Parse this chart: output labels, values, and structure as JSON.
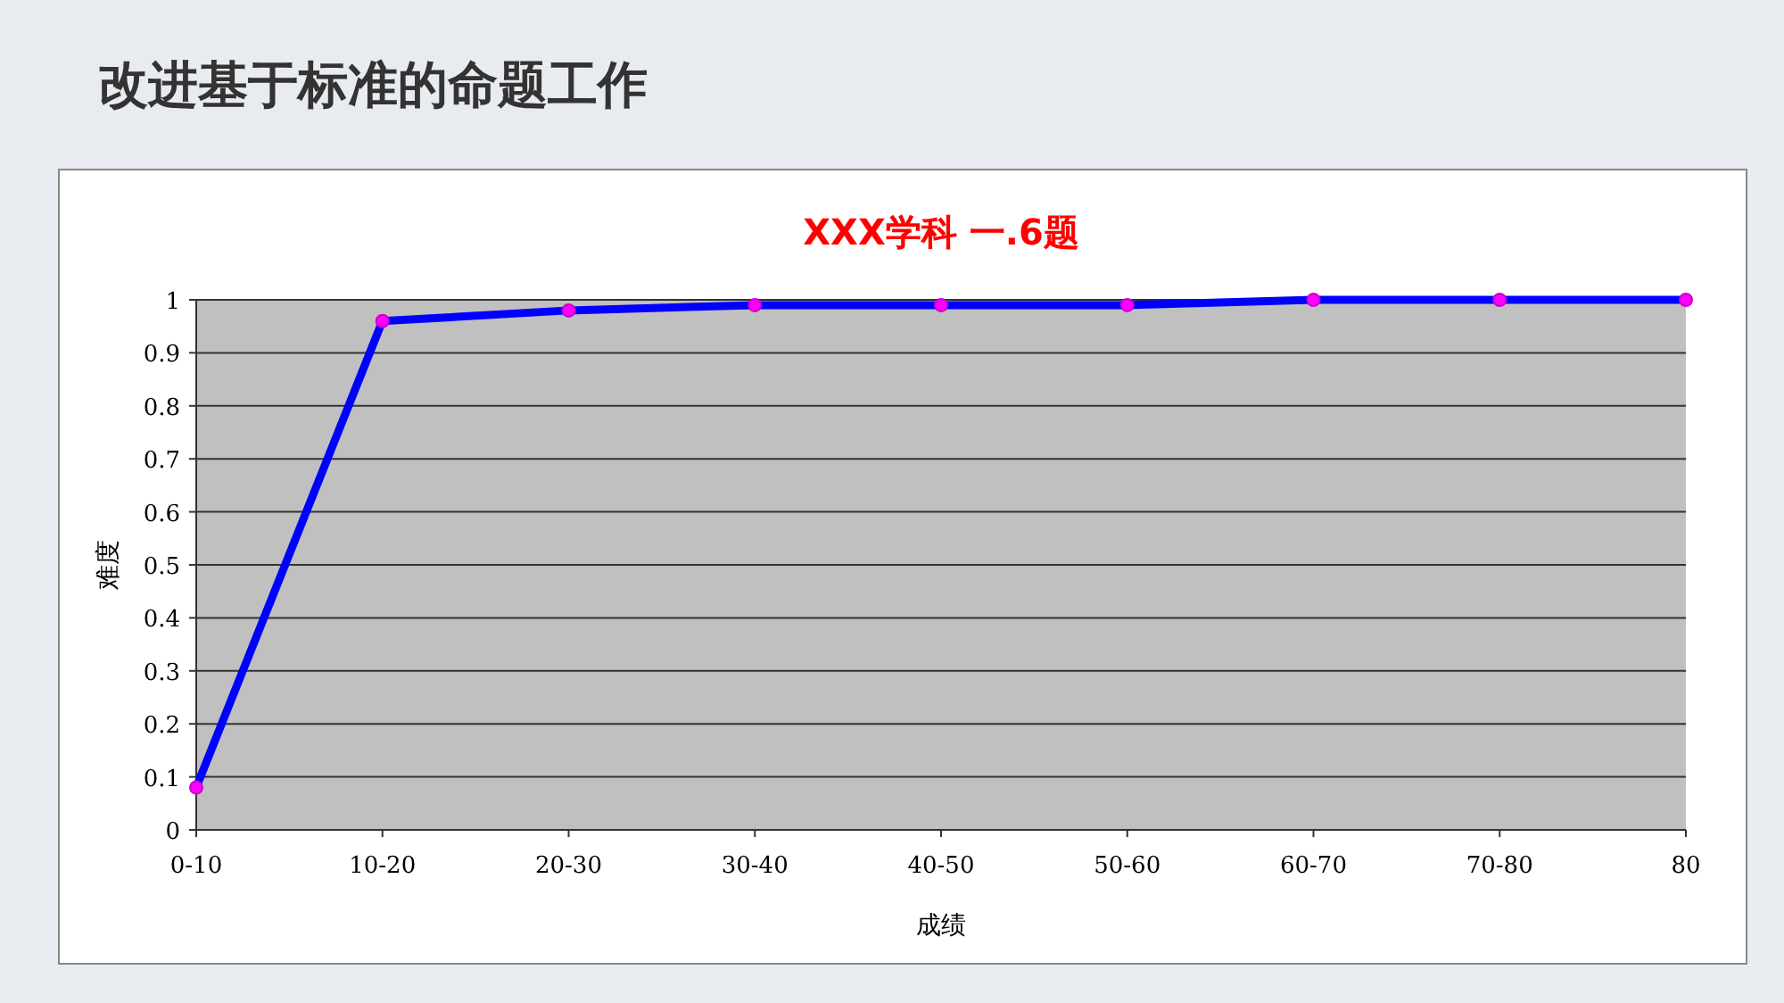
{
  "chart_data": {
    "type": "line",
    "title": "改进基于标准的命题工作",
    "subtitle": "XXX学科 一.6题",
    "xlabel": "成绩",
    "ylabel": "难度",
    "categories": [
      "0-10",
      "10-20",
      "20-30",
      "30-40",
      "40-50",
      "50-60",
      "60-70",
      "70-80",
      "80"
    ],
    "series": [
      {
        "color": "#0000ff",
        "values": [
          0.08,
          0.96,
          0.98,
          0.99,
          0.99,
          0.99,
          1.0,
          1.0,
          1.0
        ]
      }
    ],
    "ylim": [
      0,
      1
    ],
    "yticks": [
      0,
      0.1,
      0.2,
      0.3,
      0.4,
      0.5,
      0.6,
      0.7,
      0.8,
      0.9,
      1
    ],
    "grid": "y",
    "marker": "circle",
    "line_style": "solid"
  }
}
